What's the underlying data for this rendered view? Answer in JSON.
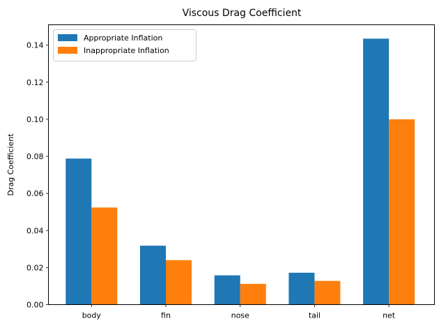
{
  "chart_data": {
    "type": "bar",
    "title": "Viscous Drag Coefficient",
    "xlabel": "",
    "ylabel": "Drag Coefficient",
    "categories": [
      "body",
      "fin",
      "nose",
      "tail",
      "net"
    ],
    "series": [
      {
        "name": "Appropriate Inflation",
        "values": [
          0.0788,
          0.0318,
          0.0158,
          0.0172,
          0.1435
        ],
        "color": "#1f77b4"
      },
      {
        "name": "Inappropriate Inflation",
        "values": [
          0.0524,
          0.024,
          0.0112,
          0.0128,
          0.1
        ],
        "color": "#ff7f0e"
      }
    ],
    "ylim": [
      0,
      0.151
    ],
    "yticks": [
      "0.00",
      "0.02",
      "0.04",
      "0.06",
      "0.08",
      "0.10",
      "0.12",
      "0.14"
    ],
    "grid": false,
    "legend_position": "top-left"
  }
}
